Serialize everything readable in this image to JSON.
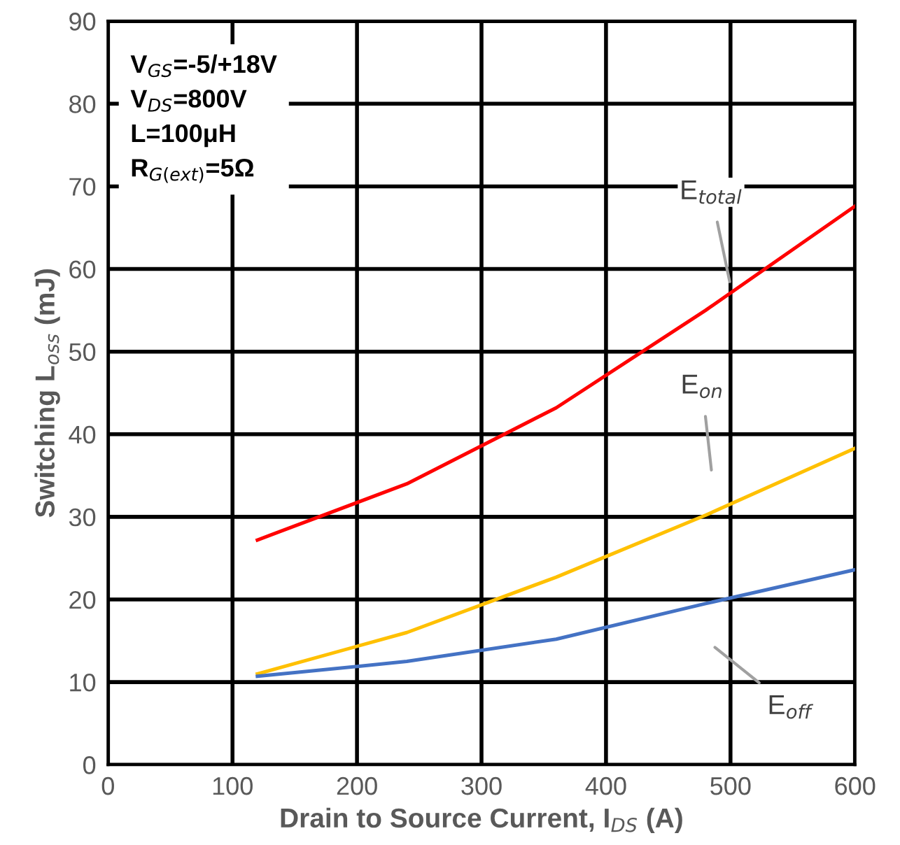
{
  "chart_data": {
    "type": "line",
    "xlabel": "Drain to Source Current, I$_{DS}$ (A)",
    "ylabel": "Switching L$_{oss}$ (mJ)",
    "x": [
      120,
      240,
      360,
      480,
      600
    ],
    "series": [
      {
        "name": "E$_{total}$",
        "color": "#ff0000",
        "values": [
          27.2,
          34,
          43.2,
          55,
          67.6
        ]
      },
      {
        "name": "E$_{on}$",
        "color": "#ffc000",
        "values": [
          11,
          16,
          22.7,
          30.2,
          38.3
        ]
      },
      {
        "name": "E$_{off}$",
        "color": "#4472c4",
        "values": [
          10.7,
          12.5,
          15.2,
          19.5,
          23.6
        ]
      }
    ],
    "xlim": [
      0,
      600
    ],
    "ylim": [
      0,
      90
    ],
    "xticks": [
      0,
      100,
      200,
      300,
      400,
      500,
      600
    ],
    "yticks": [
      0,
      10,
      20,
      30,
      40,
      50,
      60,
      70,
      80,
      90
    ],
    "grid": true,
    "legend": false,
    "marker": "none",
    "line_style": "solid",
    "annotations": [
      "V$_{GS}$=-5/+18V",
      "V$_{DS}$=800V",
      "L=100μH",
      "R$_{G(ext)}$=5Ω"
    ]
  }
}
